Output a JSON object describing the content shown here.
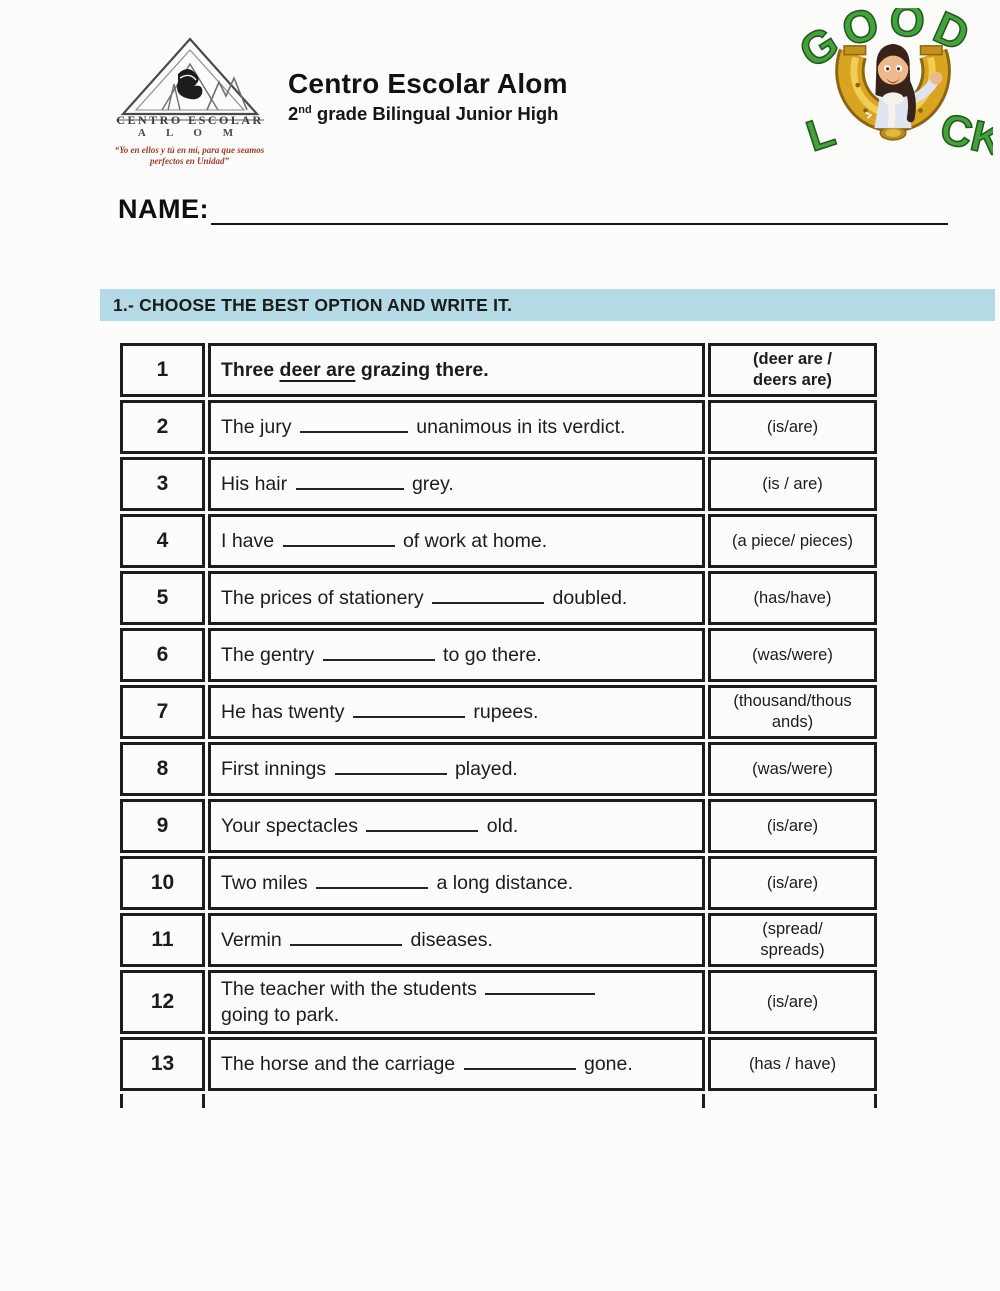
{
  "header": {
    "school_name": "Centro Escolar Alom",
    "grade_prefix": "2",
    "grade_sup": "nd",
    "grade_rest": " grade Bilingual Junior High",
    "logo": {
      "arch_text": "CENTRO ESCOLAR",
      "alom_text": "A L O M",
      "motto_line1": "“Yo en ellos y tú en mí, para que seamos",
      "motto_line2": "perfectos en Unidad”"
    },
    "good_luck": {
      "top": "GOOD",
      "bottom_left": "L",
      "bottom_right": "CK"
    }
  },
  "name_label": "NAME:",
  "section": {
    "title": "1.- CHOOSE THE BEST OPTION AND WRITE IT."
  },
  "colors": {
    "section_bar": "#b3dae5",
    "letters_green": "#44a23d",
    "horseshoe_gold": "#d9a521",
    "motto_red": "#a03d2a",
    "table_border": "#1d1d1d"
  },
  "table": {
    "rows": [
      {
        "num": "1",
        "parts": [
          {
            "t": "Three ",
            "bold": true
          },
          {
            "t": "deer are",
            "bold": true,
            "underline": true
          },
          {
            "t": " grazing there.",
            "bold": true
          }
        ],
        "option": "(deer are /\ndeers are)",
        "option_bold": true
      },
      {
        "num": "2",
        "parts": [
          {
            "t": "The jury "
          },
          {
            "blank": 108
          },
          {
            "t": " unanimous in its verdict."
          }
        ],
        "option": "(is/are)"
      },
      {
        "num": "3",
        "parts": [
          {
            "t": "His hair "
          },
          {
            "blank": 108
          },
          {
            "t": " grey."
          }
        ],
        "option": "(is / are)"
      },
      {
        "num": "4",
        "parts": [
          {
            "t": "I have "
          },
          {
            "blank": 112
          },
          {
            "t": " of work at home."
          }
        ],
        "option": "(a piece/ pieces)"
      },
      {
        "num": "5",
        "parts": [
          {
            "t": "The prices of stationery "
          },
          {
            "blank": 112
          },
          {
            "t": " doubled."
          }
        ],
        "option": "(has/have)"
      },
      {
        "num": "6",
        "parts": [
          {
            "t": "The gentry "
          },
          {
            "blank": 112
          },
          {
            "t": " to go there."
          }
        ],
        "option": "(was/were)"
      },
      {
        "num": "7",
        "parts": [
          {
            "t": "He has twenty "
          },
          {
            "blank": 112
          },
          {
            "t": " rupees."
          }
        ],
        "option": "(thousand/thous\nands)"
      },
      {
        "num": "8",
        "parts": [
          {
            "t": "First innings "
          },
          {
            "blank": 112
          },
          {
            "t": " played."
          }
        ],
        "option": "(was/were)"
      },
      {
        "num": "9",
        "parts": [
          {
            "t": "Your spectacles "
          },
          {
            "blank": 112
          },
          {
            "t": " old."
          }
        ],
        "option": "(is/are)"
      },
      {
        "num": "10",
        "parts": [
          {
            "t": "Two miles "
          },
          {
            "blank": 112
          },
          {
            "t": " a long distance."
          }
        ],
        "option": "(is/are)"
      },
      {
        "num": "11",
        "parts": [
          {
            "t": "Vermin "
          },
          {
            "blank": 112
          },
          {
            "t": " diseases."
          }
        ],
        "option": "(spread/\nspreads)"
      },
      {
        "num": "12",
        "parts": [
          {
            "t": "The teacher with the students "
          },
          {
            "blank": 110
          },
          {
            "br": true
          },
          {
            "t": "going to park."
          }
        ],
        "option": "(is/are)"
      },
      {
        "num": "13",
        "parts": [
          {
            "t": "The horse and the carriage "
          },
          {
            "blank": 112
          },
          {
            "t": " gone."
          }
        ],
        "option": "(has / have)"
      }
    ]
  }
}
